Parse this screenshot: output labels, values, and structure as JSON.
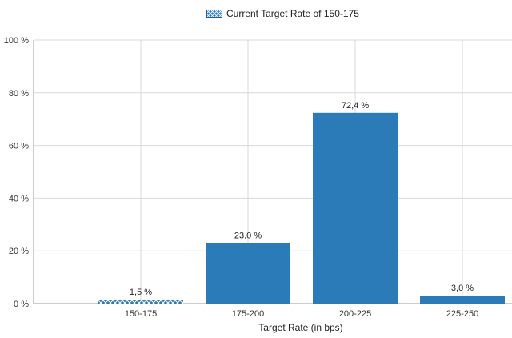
{
  "chart_data": {
    "type": "bar",
    "legend": {
      "label": "Current Target Rate of 150-175",
      "placement": "top-center"
    },
    "categories": [
      "150-175",
      "175-200",
      "200-225",
      "225-250"
    ],
    "values": [
      1.5,
      23.0,
      72.4,
      3.0
    ],
    "data_labels": [
      "1,5 %",
      "23,0 %",
      "72,4 %",
      "3,0 %"
    ],
    "highlighted_category": "150-175",
    "xlabel": "Target Rate (in bps)",
    "ylabel": "",
    "ylim": [
      0,
      100
    ],
    "yticks": [
      0,
      20,
      40,
      60,
      80,
      100
    ],
    "ytick_labels": [
      "0 %",
      "20 %",
      "40 %",
      "60 %",
      "80 %",
      "100 %"
    ],
    "grid": true,
    "colors": {
      "bar": "#2b7bb9",
      "hatch": "#ffffff",
      "grid": "#d9d9d9",
      "axis": "#999999"
    }
  }
}
